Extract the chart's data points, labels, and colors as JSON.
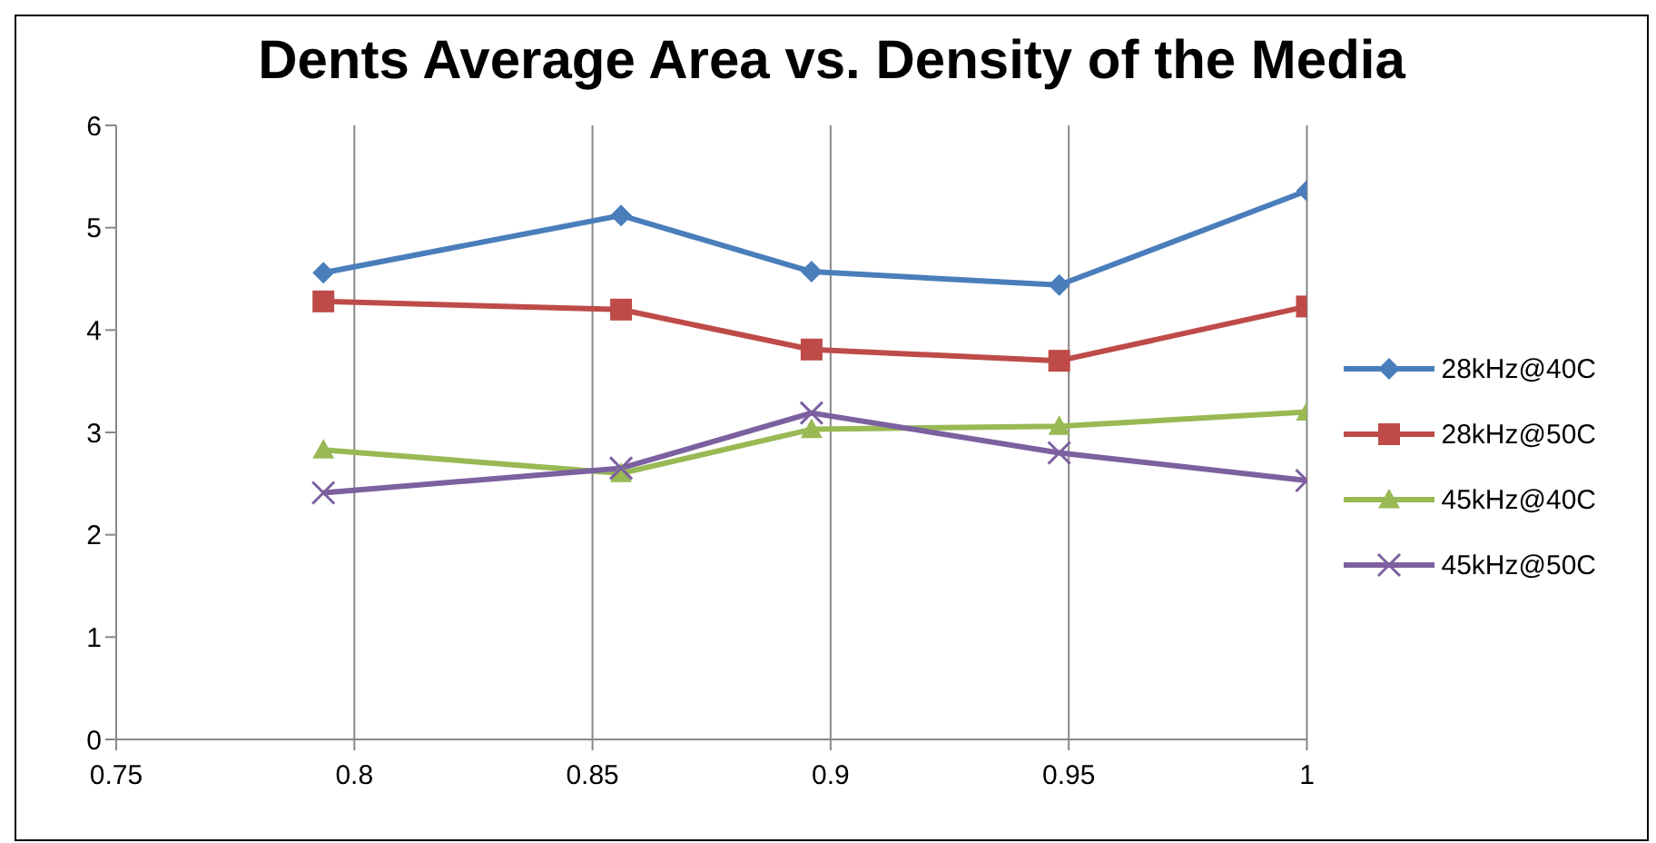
{
  "chart_data": {
    "type": "line",
    "title": "Dents Average Area vs. Density of the Media",
    "x": [
      0.7935,
      0.856,
      0.896,
      0.948,
      1.0
    ],
    "series": [
      {
        "name": "28kHz@40C",
        "color": "#4a7ebb",
        "marker": "diamond",
        "values": [
          4.56,
          5.12,
          4.57,
          4.44,
          5.36
        ]
      },
      {
        "name": "28kHz@50C",
        "color": "#be4b48",
        "marker": "square",
        "values": [
          4.28,
          4.2,
          3.81,
          3.7,
          4.23
        ]
      },
      {
        "name": "45kHz@40C",
        "color": "#98b954",
        "marker": "triangle",
        "values": [
          2.83,
          2.6,
          3.03,
          3.06,
          3.2
        ]
      },
      {
        "name": "45kHz@50C",
        "color": "#7d60a0",
        "marker": "cross",
        "values": [
          2.41,
          2.65,
          3.19,
          2.8,
          2.53
        ]
      }
    ],
    "xlim": [
      0.75,
      1
    ],
    "xticks": [
      0.75,
      0.8,
      0.85,
      0.9,
      0.95,
      1
    ],
    "ylim": [
      0,
      6
    ],
    "yticks": [
      0,
      1,
      2,
      3,
      4,
      5,
      6
    ],
    "grid": "x",
    "legend": "right"
  }
}
